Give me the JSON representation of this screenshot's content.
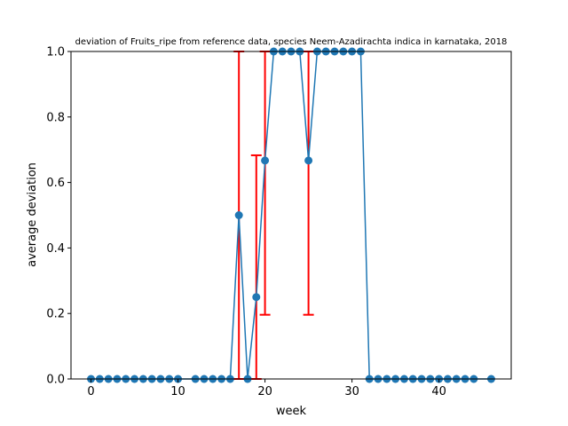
{
  "chart_data": {
    "type": "line",
    "title": "deviation of Fruits_ripe from reference data, species Neem-Azadirachta indica in karnataka, 2018",
    "xlabel": "week",
    "ylabel": "average deviation",
    "xlim": [
      -2.3,
      48.3
    ],
    "ylim": [
      0,
      1
    ],
    "xticks": [
      0,
      10,
      20,
      30,
      40
    ],
    "yticks": [
      0.0,
      0.2,
      0.4,
      0.6,
      0.8,
      1.0
    ],
    "xtick_labels": [
      "0",
      "10",
      "20",
      "30",
      "40"
    ],
    "ytick_labels": [
      "0.0",
      "0.2",
      "0.4",
      "0.6",
      "0.8",
      "1.0"
    ],
    "grid": false,
    "line_color": "#1f77b4",
    "error_color": "#ff0000",
    "series": [
      {
        "x": [
          0,
          1,
          2,
          3,
          4,
          5,
          6,
          7,
          8,
          9,
          10,
          12,
          13,
          14,
          15,
          16,
          17,
          18,
          19,
          20,
          21,
          22,
          23,
          24,
          25,
          26,
          27,
          28,
          29,
          30,
          31,
          32,
          33,
          34,
          35,
          36,
          37,
          38,
          39,
          40,
          41,
          42,
          43,
          44,
          46
        ],
        "y": [
          0,
          0,
          0,
          0,
          0,
          0,
          0,
          0,
          0,
          0,
          0,
          0,
          0,
          0,
          0,
          0,
          0.5,
          0,
          0.25,
          0.667,
          1,
          1,
          1,
          1,
          0.667,
          1,
          1,
          1,
          1,
          1,
          1,
          0,
          0,
          0,
          0,
          0,
          0,
          0,
          0,
          0,
          0,
          0,
          0,
          0,
          0
        ]
      }
    ],
    "error_bars": [
      {
        "x": 17,
        "low": 0,
        "high": 1
      },
      {
        "x": 19,
        "low": 0,
        "high": 0.683
      },
      {
        "x": 20,
        "low": 0.196,
        "high": 1
      },
      {
        "x": 25,
        "low": 0.196,
        "high": 1
      }
    ]
  }
}
